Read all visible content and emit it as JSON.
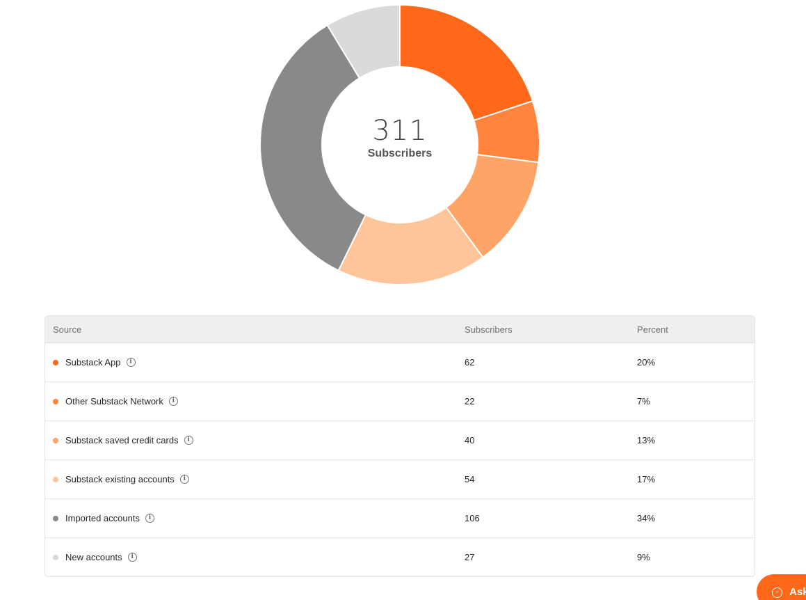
{
  "chart_data": {
    "type": "pie",
    "style": "donut",
    "center_value": "311",
    "center_label": "Subscribers",
    "categories": [
      "Substack App",
      "Other Substack Network",
      "Substack saved credit cards",
      "Substack existing accounts",
      "Imported accounts",
      "New accounts"
    ],
    "values": [
      62,
      22,
      40,
      54,
      106,
      27
    ],
    "colors": [
      "#ff6719",
      "#ff843d",
      "#ffa467",
      "#ffc59a",
      "#898989",
      "#dadada"
    ]
  },
  "table": {
    "headers": {
      "source": "Source",
      "subscribers": "Subscribers",
      "percent": "Percent"
    },
    "rows": [
      {
        "source": "Substack App",
        "subscribers": "62",
        "percent": "20%",
        "color": "#ff6719"
      },
      {
        "source": "Other Substack Network",
        "subscribers": "22",
        "percent": "7%",
        "color": "#ff843d"
      },
      {
        "source": "Substack saved credit cards",
        "subscribers": "40",
        "percent": "13%",
        "color": "#ffa467"
      },
      {
        "source": "Substack existing accounts",
        "subscribers": "54",
        "percent": "17%",
        "color": "#ffc59a"
      },
      {
        "source": "Imported accounts",
        "subscribers": "106",
        "percent": "34%",
        "color": "#898989"
      },
      {
        "source": "New accounts",
        "subscribers": "27",
        "percent": "9%",
        "color": "#dadada"
      }
    ],
    "info_icon": "info-circle-icon"
  },
  "ask_button": {
    "label": "Ask",
    "icon": "chat-bubble-icon",
    "color": "#ff6719"
  }
}
